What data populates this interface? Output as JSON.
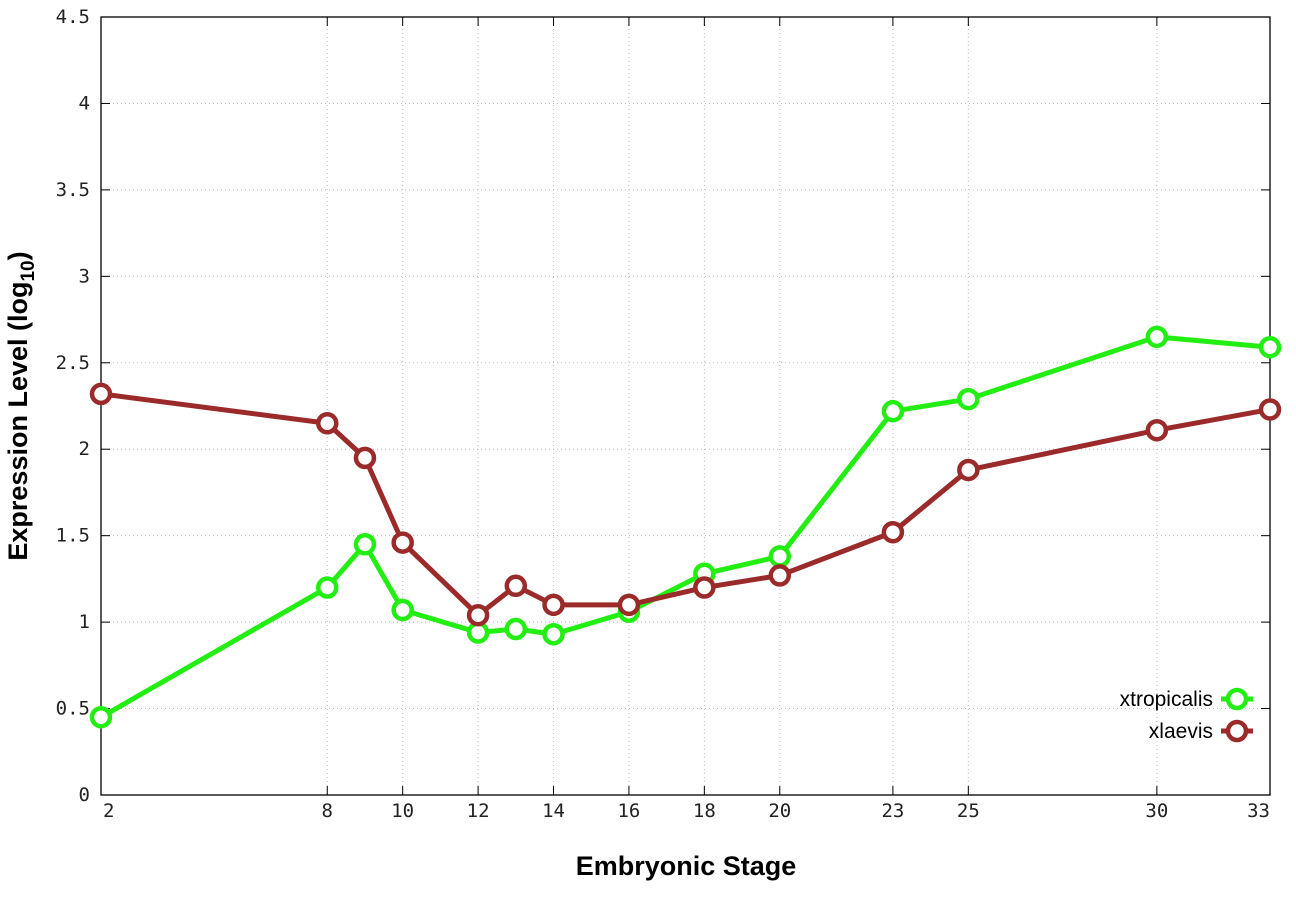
{
  "chart_data": {
    "type": "line",
    "xlabel": "Embryonic Stage",
    "ylabel_main": "Expression Level (log",
    "ylabel_sub": "10",
    "ylabel_close": ")",
    "x_ticks": [
      "2",
      "8",
      "10",
      "12",
      "14",
      "16",
      "18",
      "20",
      "23",
      "25",
      "30",
      "33"
    ],
    "y_ticks": [
      "0",
      "0.5",
      "1",
      "1.5",
      "2",
      "2.5",
      "3",
      "3.5",
      "4",
      "4.5"
    ],
    "xlim": [
      2,
      33
    ],
    "ylim": [
      0,
      4.5
    ],
    "grid": true,
    "legend_position": "bottom-right",
    "series": [
      {
        "name": "xtropicalis",
        "color": "#22ee11",
        "x": [
          2,
          8,
          9,
          10,
          12,
          13,
          14,
          16,
          18,
          20,
          23,
          25,
          30,
          33
        ],
        "values": [
          0.45,
          1.2,
          1.45,
          1.07,
          0.94,
          0.96,
          0.93,
          1.06,
          1.28,
          1.38,
          2.22,
          2.29,
          2.65,
          2.59
        ]
      },
      {
        "name": "xlaevis",
        "color": "#9b2a2a",
        "x": [
          2,
          8,
          9,
          10,
          12,
          13,
          14,
          16,
          18,
          20,
          23,
          25,
          30,
          33
        ],
        "values": [
          2.32,
          2.15,
          1.95,
          1.46,
          1.04,
          1.21,
          1.1,
          1.1,
          1.2,
          1.27,
          1.52,
          1.88,
          2.11,
          2.23
        ]
      }
    ]
  }
}
